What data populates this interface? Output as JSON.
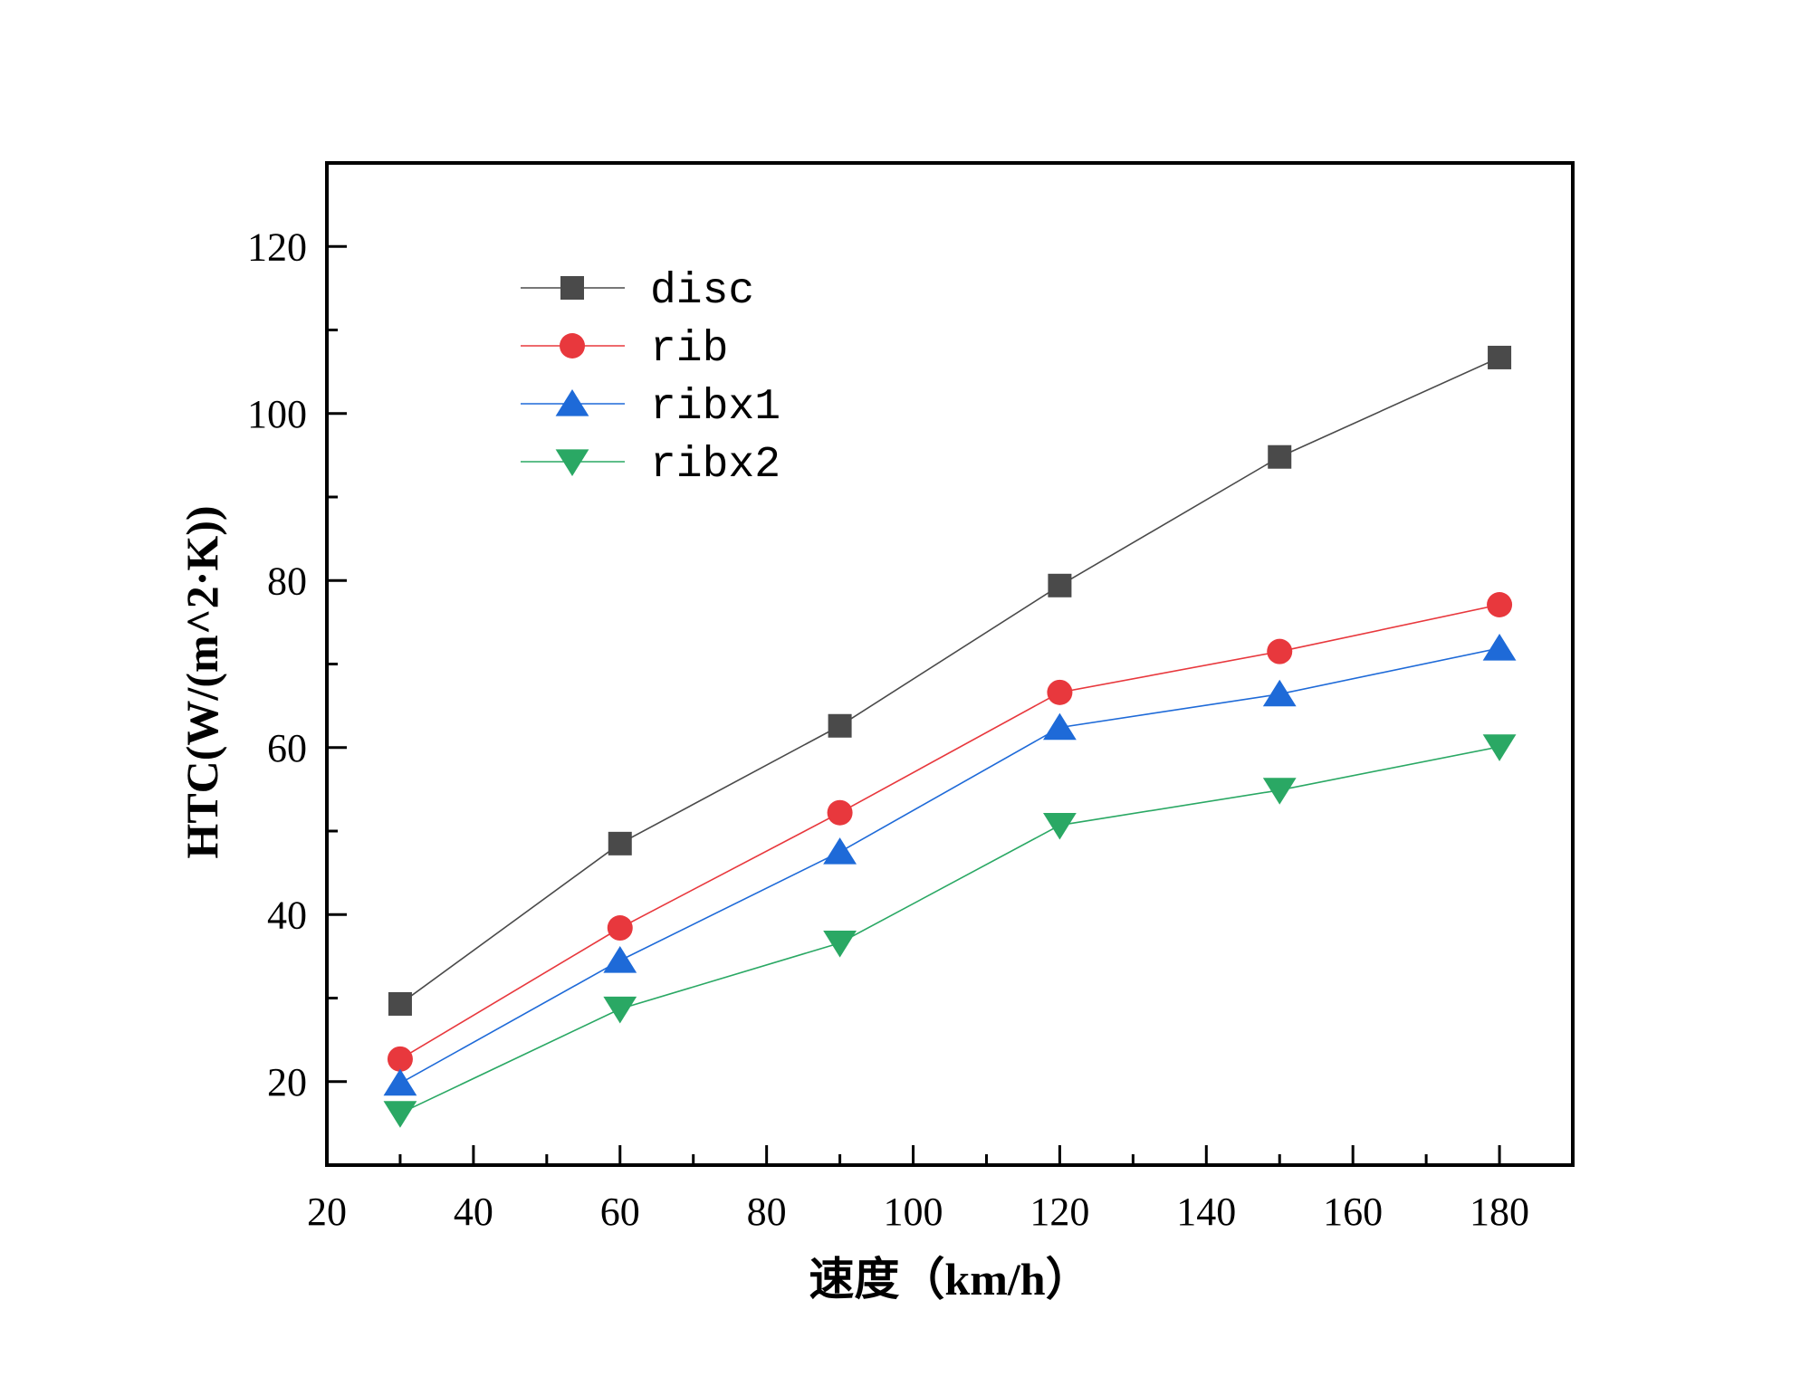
{
  "chart_data": {
    "type": "line",
    "title": "",
    "xlabel": "速度（km/h）",
    "ylabel": "HTC(W/(m^2·K))",
    "xlim": [
      20,
      190
    ],
    "ylim": [
      10,
      130
    ],
    "x_major_ticks": [
      20,
      40,
      60,
      80,
      100,
      120,
      140,
      160,
      180
    ],
    "x_minor_ticks": [
      30,
      50,
      70,
      90,
      110,
      130,
      150,
      170
    ],
    "y_major_ticks": [
      20,
      40,
      60,
      80,
      100,
      120
    ],
    "y_minor_ticks": [
      30,
      50,
      70,
      90,
      110
    ],
    "x_tick_labels": [
      "20",
      "40",
      "60",
      "80",
      "100",
      "120",
      "140",
      "160",
      "180"
    ],
    "y_tick_labels": [
      "20",
      "40",
      "60",
      "80",
      "100",
      "120"
    ],
    "grid": false,
    "legend_position": "top-left",
    "x": [
      30,
      60,
      90,
      120,
      150,
      180
    ],
    "series": [
      {
        "name": "disc",
        "marker": "square",
        "color": "#4a4a4a",
        "values": [
          29.3,
          48.5,
          62.6,
          79.4,
          94.8,
          106.7
        ]
      },
      {
        "name": "rib",
        "marker": "circle",
        "color": "#e8383d",
        "values": [
          22.7,
          38.4,
          52.2,
          66.6,
          71.5,
          77.1
        ]
      },
      {
        "name": "ribx1",
        "marker": "triangle-up",
        "color": "#1e6ad8",
        "values": [
          19.8,
          34.5,
          47.5,
          62.4,
          66.4,
          71.9
        ]
      },
      {
        "name": "ribx2",
        "marker": "triangle-down",
        "color": "#2aa864",
        "values": [
          16.2,
          28.7,
          36.6,
          50.7,
          54.9,
          60.1
        ]
      }
    ]
  }
}
